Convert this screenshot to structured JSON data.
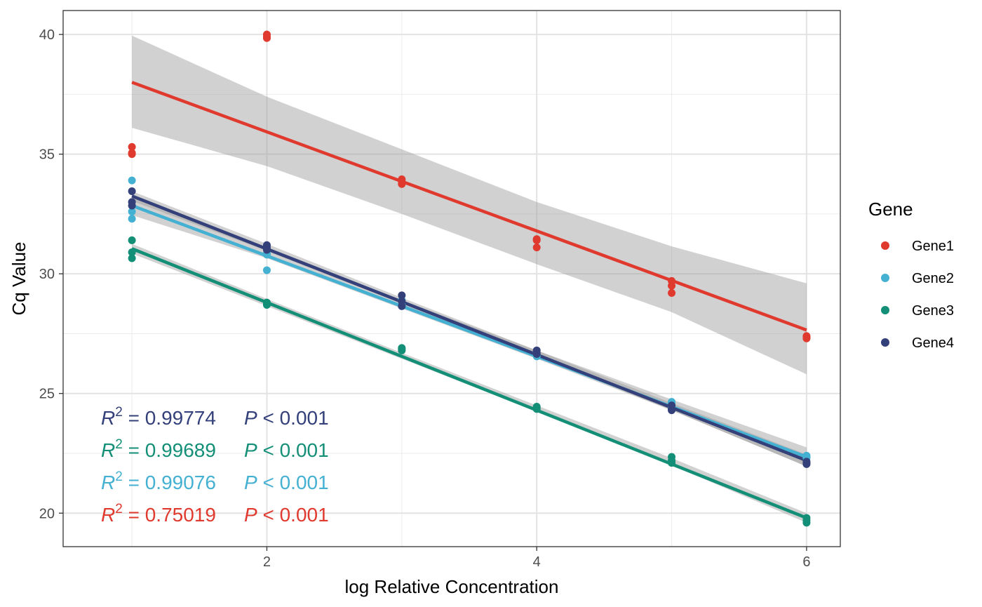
{
  "chart_data": {
    "type": "scatter",
    "xlabel": "log Relative Concentration",
    "ylabel": "Cq Value",
    "xlim": [
      0.49,
      6.25
    ],
    "ylim": [
      18.6,
      41.0
    ],
    "x_ticks": [
      2,
      4,
      6
    ],
    "x_tick_labels": [
      "2",
      "4",
      "6"
    ],
    "y_ticks": [
      20,
      25,
      30,
      35,
      40
    ],
    "y_tick_labels": [
      "20",
      "25",
      "30",
      "35",
      "40"
    ],
    "grid": true,
    "legend": {
      "title": "Gene",
      "placement": "right",
      "items": [
        {
          "label": "Gene1",
          "color": "#e03a2f"
        },
        {
          "label": "Gene2",
          "color": "#44b0d2"
        },
        {
          "label": "Gene3",
          "color": "#148f77"
        },
        {
          "label": "Gene4",
          "color": "#33407a"
        }
      ]
    },
    "series": [
      {
        "name": "Gene1",
        "color": "#e03a2f",
        "points": [
          [
            1,
            35.3
          ],
          [
            1,
            35.0
          ],
          [
            1,
            35.05
          ],
          [
            2,
            40.0
          ],
          [
            2,
            39.85
          ],
          [
            2,
            39.9
          ],
          [
            3,
            33.95
          ],
          [
            3,
            33.75
          ],
          [
            3,
            33.85
          ],
          [
            4,
            31.45
          ],
          [
            4,
            31.1
          ],
          [
            4,
            31.4
          ],
          [
            5,
            29.7
          ],
          [
            5,
            29.5
          ],
          [
            5,
            29.2
          ],
          [
            6,
            27.4
          ],
          [
            6,
            27.3
          ],
          [
            6,
            27.35
          ]
        ],
        "fit": {
          "x": [
            1,
            6
          ],
          "y": [
            38.0,
            27.65
          ]
        },
        "ci_upper": [
          [
            1,
            39.95
          ],
          [
            2,
            37.4
          ],
          [
            3,
            35.2
          ],
          [
            4,
            33.0
          ],
          [
            5,
            31.15
          ],
          [
            6,
            29.6
          ]
        ],
        "ci_lower": [
          [
            1,
            36.1
          ],
          [
            2,
            34.5
          ],
          [
            3,
            32.5
          ],
          [
            4,
            30.4
          ],
          [
            5,
            28.4
          ],
          [
            6,
            25.8
          ]
        ]
      },
      {
        "name": "Gene2",
        "color": "#44b0d2",
        "points": [
          [
            1,
            33.9
          ],
          [
            1,
            32.6
          ],
          [
            1,
            32.3
          ],
          [
            2,
            30.15
          ],
          [
            2,
            30.85
          ],
          [
            2,
            30.8
          ],
          [
            3,
            28.7
          ],
          [
            3,
            28.65
          ],
          [
            3,
            28.9
          ],
          [
            4,
            26.55
          ],
          [
            4,
            26.7
          ],
          [
            4,
            26.6
          ],
          [
            5,
            24.6
          ],
          [
            5,
            24.65
          ],
          [
            5,
            24.45
          ],
          [
            6,
            22.35
          ],
          [
            6,
            22.4
          ],
          [
            6,
            22.3
          ]
        ],
        "fit": {
          "x": [
            1,
            6
          ],
          "y": [
            32.85,
            22.35
          ]
        },
        "ci_upper": [
          [
            1,
            33.25
          ],
          [
            2,
            31.05
          ],
          [
            3,
            28.9
          ],
          [
            4,
            26.8
          ],
          [
            5,
            24.75
          ],
          [
            6,
            22.75
          ]
        ],
        "ci_lower": [
          [
            1,
            32.45
          ],
          [
            2,
            30.65
          ],
          [
            3,
            28.55
          ],
          [
            4,
            26.45
          ],
          [
            5,
            24.3
          ],
          [
            6,
            21.95
          ]
        ]
      },
      {
        "name": "Gene3",
        "color": "#148f77",
        "points": [
          [
            1,
            31.4
          ],
          [
            1,
            30.9
          ],
          [
            1,
            30.65
          ],
          [
            2,
            28.8
          ],
          [
            2,
            28.7
          ],
          [
            2,
            28.75
          ],
          [
            3,
            26.9
          ],
          [
            3,
            26.8
          ],
          [
            3,
            26.85
          ],
          [
            4,
            24.45
          ],
          [
            4,
            24.4
          ],
          [
            4,
            24.35
          ],
          [
            5,
            22.35
          ],
          [
            5,
            22.2
          ],
          [
            5,
            22.1
          ],
          [
            6,
            19.8
          ],
          [
            6,
            19.6
          ],
          [
            6,
            19.7
          ]
        ],
        "fit": {
          "x": [
            1,
            6
          ],
          "y": [
            31.05,
            19.8
          ]
        },
        "ci_upper": [
          [
            1,
            31.25
          ],
          [
            2,
            28.95
          ],
          [
            3,
            26.7
          ],
          [
            4,
            24.5
          ],
          [
            5,
            22.3
          ],
          [
            6,
            20.0
          ]
        ],
        "ci_lower": [
          [
            1,
            30.85
          ],
          [
            2,
            28.65
          ],
          [
            3,
            26.45
          ],
          [
            4,
            24.25
          ],
          [
            5,
            22.0
          ],
          [
            6,
            19.6
          ]
        ]
      },
      {
        "name": "Gene4",
        "color": "#33407a",
        "points": [
          [
            1,
            33.45
          ],
          [
            1,
            33.0
          ],
          [
            1,
            32.85
          ],
          [
            2,
            31.2
          ],
          [
            2,
            31.1
          ],
          [
            2,
            31.0
          ],
          [
            3,
            29.1
          ],
          [
            3,
            28.85
          ],
          [
            3,
            28.65
          ],
          [
            4,
            26.8
          ],
          [
            4,
            26.65
          ],
          [
            4,
            26.7
          ],
          [
            5,
            24.3
          ],
          [
            5,
            24.35
          ],
          [
            5,
            24.5
          ],
          [
            6,
            22.05
          ],
          [
            6,
            22.15
          ],
          [
            6,
            22.1
          ]
        ],
        "fit": {
          "x": [
            1,
            6
          ],
          "y": [
            33.25,
            22.2
          ]
        },
        "ci_upper": [
          [
            1,
            33.45
          ],
          [
            2,
            31.25
          ],
          [
            3,
            29.0
          ],
          [
            4,
            26.8
          ],
          [
            5,
            24.6
          ],
          [
            6,
            22.45
          ]
        ],
        "ci_lower": [
          [
            1,
            33.05
          ],
          [
            2,
            30.95
          ],
          [
            3,
            28.75
          ],
          [
            4,
            26.55
          ],
          [
            5,
            24.3
          ],
          [
            6,
            21.95
          ]
        ]
      }
    ],
    "annotations": [
      {
        "r2_symbol": "R",
        "r2_exp": "2",
        "r2_text": " = 0.99774",
        "p_symbol": "P",
        "p_text": " < 0.001",
        "color": "#33407a"
      },
      {
        "r2_symbol": "R",
        "r2_exp": "2",
        "r2_text": " = 0.99689",
        "p_symbol": "P",
        "p_text": " < 0.001",
        "color": "#148f77"
      },
      {
        "r2_symbol": "R",
        "r2_exp": "2",
        "r2_text": " = 0.99076",
        "p_symbol": "P",
        "p_text": " < 0.001",
        "color": "#44b0d2"
      },
      {
        "r2_symbol": "R",
        "r2_exp": "2",
        "r2_text": " = 0.75019",
        "p_symbol": "P",
        "p_text": " < 0.001",
        "color": "#e03a2f"
      }
    ]
  }
}
